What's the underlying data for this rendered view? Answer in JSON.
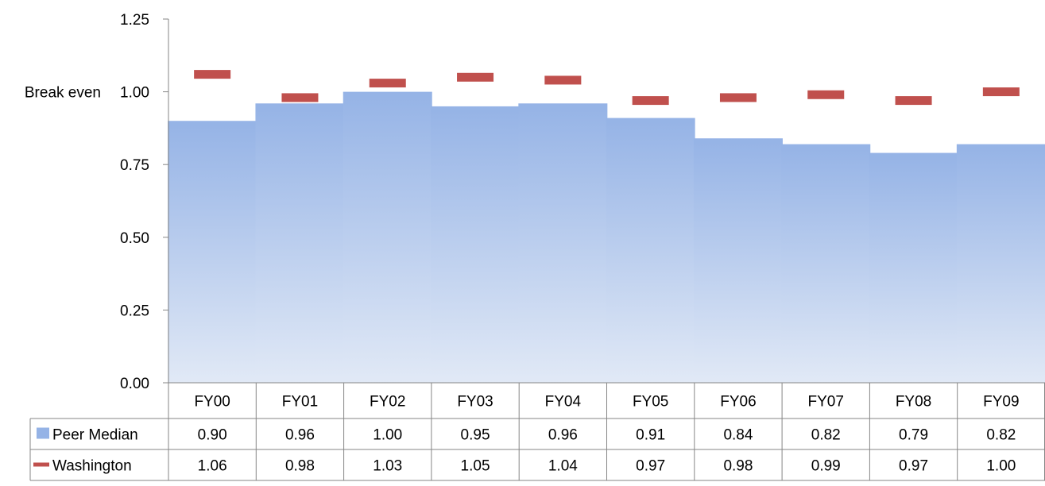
{
  "chart_data": {
    "type": "bar",
    "categories": [
      "FY00",
      "FY01",
      "FY02",
      "FY03",
      "FY04",
      "FY05",
      "FY06",
      "FY07",
      "FY08",
      "FY09"
    ],
    "series": [
      {
        "name": "Peer Median",
        "kind": "bar",
        "color": "#95b3e6",
        "values": [
          0.9,
          0.96,
          1.0,
          0.95,
          0.96,
          0.91,
          0.84,
          0.82,
          0.79,
          0.82
        ]
      },
      {
        "name": "Washington",
        "kind": "marker",
        "color": "#c0504d",
        "values": [
          1.06,
          0.98,
          1.03,
          1.05,
          1.04,
          0.97,
          0.98,
          0.99,
          0.97,
          1.0
        ]
      }
    ],
    "yticks": [
      "0.00",
      "0.25",
      "0.50",
      "0.75",
      "1.00",
      "1.25"
    ],
    "ylim": [
      0,
      1.25
    ],
    "reference_line": {
      "label": "Break even",
      "value": 1.0
    },
    "data_table": true,
    "grid": false,
    "legend": "data-table"
  }
}
